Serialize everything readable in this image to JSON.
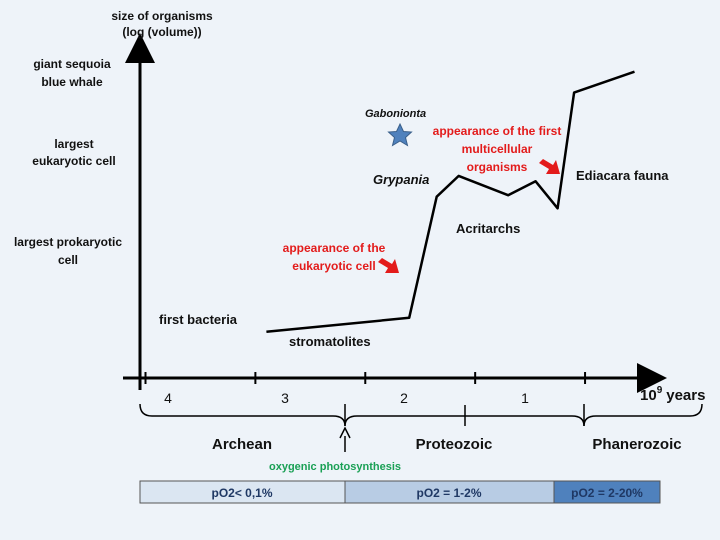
{
  "chart_data": {
    "type": "line",
    "ylabel": [
      "size of organisms",
      "(log (volume))"
    ],
    "xlabel": "10",
    "xlabel_sup": "9",
    "xlabel_tail": "years",
    "x_reversed": true,
    "x_ticks": [
      "4",
      "3",
      "2",
      "1"
    ],
    "y_levels": [
      {
        "label": [
          "largest prokaryotic",
          "cell"
        ],
        "value": 2
      },
      {
        "label": [
          "largest",
          "eukaryotic cell"
        ],
        "value": 3
      },
      {
        "label": [
          "giant sequoia",
          "blue whale"
        ],
        "value": 4
      }
    ],
    "series": [
      {
        "x": [
          3.4,
          2.1,
          1.85,
          1.65,
          1.2,
          0.95,
          0.75,
          0.6,
          0.05
        ],
        "y": [
          0.6,
          0.78,
          2.35,
          2.62,
          2.37,
          2.55,
          2.2,
          3.7,
          3.97
        ]
      }
    ],
    "annotations": {
      "first_bacteria": "first bacteria",
      "stromatolites": "stromatolites",
      "acritarchs": "Acritarchs",
      "grypania": "Grypania",
      "gabonionta": "Gabonionta",
      "ediacara": "Ediacara fauna",
      "eukaryotic_appearance": [
        "appearance of the",
        "eukaryotic cell"
      ],
      "multicellular_appearance": [
        "appearance of the first",
        "multicellular",
        "organisms"
      ],
      "oxygenic": "oxygenic photosynthesis"
    },
    "eons": [
      "Archean",
      "Proteozoic",
      "Phanerozoic"
    ],
    "oxygen_levels": [
      {
        "label": "pO2< 0,1%",
        "color": "#dbe6f2"
      },
      {
        "label": "pO2 = 1-2%",
        "color": "#b8cce4"
      },
      {
        "label": "pO2 = 2-20%",
        "color": "#4f81bd"
      }
    ],
    "colors": {
      "line": "#000000",
      "arrow": "#e31b1b",
      "star": "#4f81bd",
      "green": "#1aa055"
    }
  }
}
